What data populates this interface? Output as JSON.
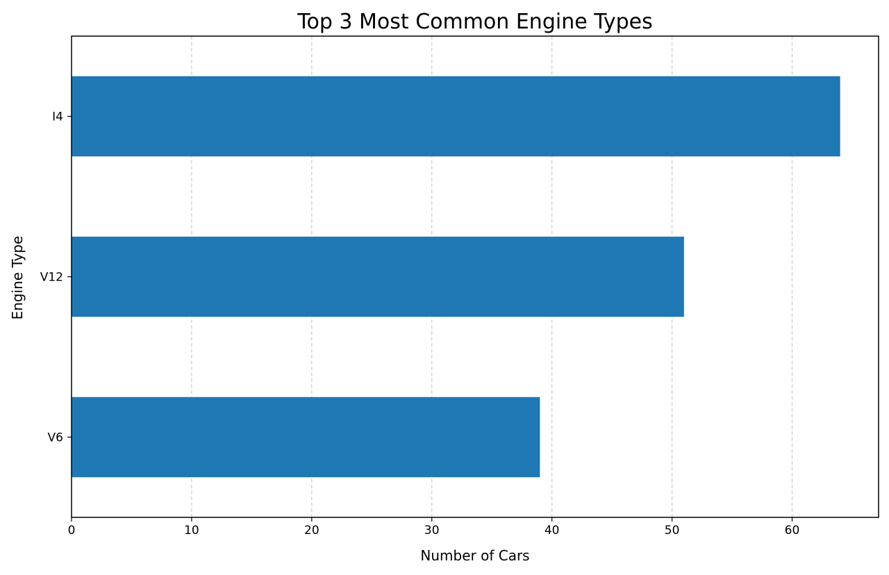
{
  "chart_data": {
    "type": "bar",
    "orientation": "horizontal",
    "title": "Top 3 Most Common Engine Types",
    "xlabel": "Number of Cars",
    "ylabel": "Engine Type",
    "categories": [
      "I4",
      "V12",
      "V6"
    ],
    "values": [
      64,
      51,
      39
    ],
    "xlim": [
      0,
      67.2
    ],
    "xticks": [
      0,
      10,
      20,
      30,
      40,
      50,
      60
    ],
    "grid": "x-dashed",
    "legend": "none",
    "bar_color": "#1f77b4",
    "grid_color": "#c8c8c8"
  }
}
